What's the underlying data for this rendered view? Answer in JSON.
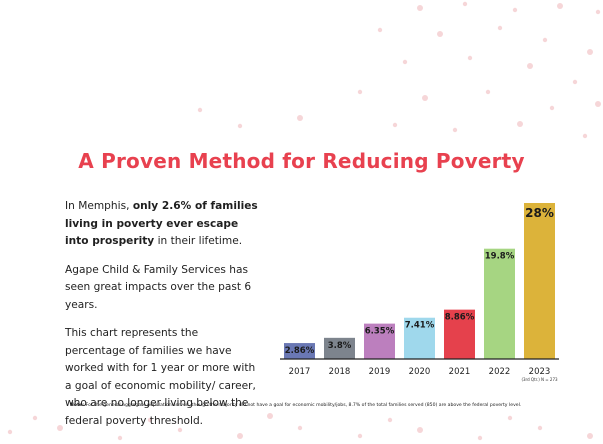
{
  "colors": {
    "title": "#e8414f",
    "dots": "#f6d6d8",
    "axis": "#222222"
  },
  "title": "A Proven Method for Reducing Poverty",
  "intro": {
    "prefix": "In Memphis, ",
    "bold": "only 2.6% of families living in poverty ever escape into prosperity",
    "suffix": " in their lifetime."
  },
  "para2": "Agape Child & Family Services has seen great impacts over the past 6 years.",
  "para3": "This chart represents the percentage of families we have worked with for 1 year or more with a goal of economic mobility/ career, who are no longer living below the federal poverty threshold.",
  "chart_data": {
    "type": "bar",
    "title": "",
    "xlabel": "",
    "ylabel": "",
    "ylim": [
      0,
      28
    ],
    "grid": false,
    "categories": [
      "2017",
      "2018",
      "2019",
      "2020",
      "2021",
      "2022",
      "2023"
    ],
    "values": [
      2.86,
      3.8,
      6.35,
      7.41,
      8.86,
      19.8,
      28
    ],
    "value_labels": [
      "2.86%",
      "3.8%",
      "6.35%",
      "7.41%",
      "8.86%",
      "19.8%",
      "28%"
    ],
    "colors": [
      "#6a78b4",
      "#7d848d",
      "#bc7fbe",
      "#9fd8ec",
      "#e5414c",
      "#a6d582",
      "#dcb33a"
    ],
    "annotation": "(3rd Qtr.) N = 273"
  },
  "note": {
    "label": "Note:",
    "text": " For the general aggregate population served, though the majority did not have a goal for economic mobility/jobs, 8.7% of the total families served (850) are above the federal poverty level."
  }
}
